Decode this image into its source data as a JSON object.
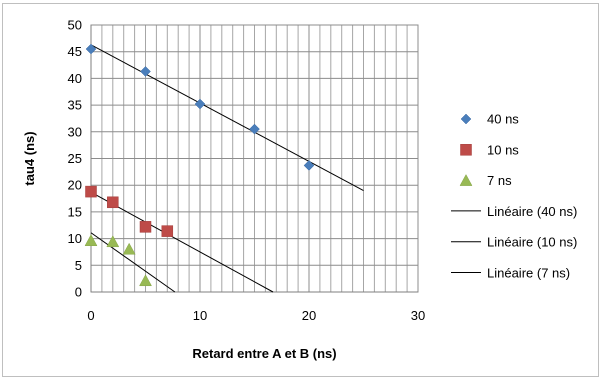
{
  "chart_data": {
    "type": "scatter",
    "xlabel": "Retard entre A et B (ns)",
    "ylabel": "tau4 (ns)",
    "xlim": [
      0,
      30
    ],
    "ylim": [
      0,
      50
    ],
    "x_ticks": [
      0,
      10,
      20,
      30
    ],
    "y_ticks": [
      0,
      5,
      10,
      15,
      20,
      25,
      30,
      35,
      40,
      45,
      50
    ],
    "x_minor_step": 1,
    "grid": true,
    "legend_position": "right",
    "series": [
      {
        "name": "40 ns",
        "marker": "diamond",
        "color": "#4a7ebb",
        "x": [
          0,
          5,
          10,
          15,
          20
        ],
        "y": [
          45.5,
          41.3,
          35.2,
          30.5,
          23.7
        ]
      },
      {
        "name": "10 ns",
        "marker": "square",
        "color": "#be4b48",
        "x": [
          0,
          2,
          5,
          7
        ],
        "y": [
          18.8,
          16.8,
          12.2,
          11.4
        ]
      },
      {
        "name": "7 ns",
        "marker": "triangle",
        "color": "#98b954",
        "x": [
          0,
          2,
          3.5,
          5
        ],
        "y": [
          9.6,
          9.4,
          8.0,
          2.1
        ]
      }
    ],
    "trendlines": [
      {
        "name": "Linéaire (40 ns)",
        "color": "#000000",
        "x": [
          0,
          25
        ],
        "y": [
          46.3,
          19.0
        ]
      },
      {
        "name": "Linéaire (10 ns)",
        "color": "#000000",
        "x": [
          0,
          16.7
        ],
        "y": [
          18.7,
          0
        ]
      },
      {
        "name": "Linéaire (7 ns)",
        "color": "#000000",
        "x": [
          0,
          7.7
        ],
        "y": [
          11.1,
          0
        ]
      }
    ]
  }
}
